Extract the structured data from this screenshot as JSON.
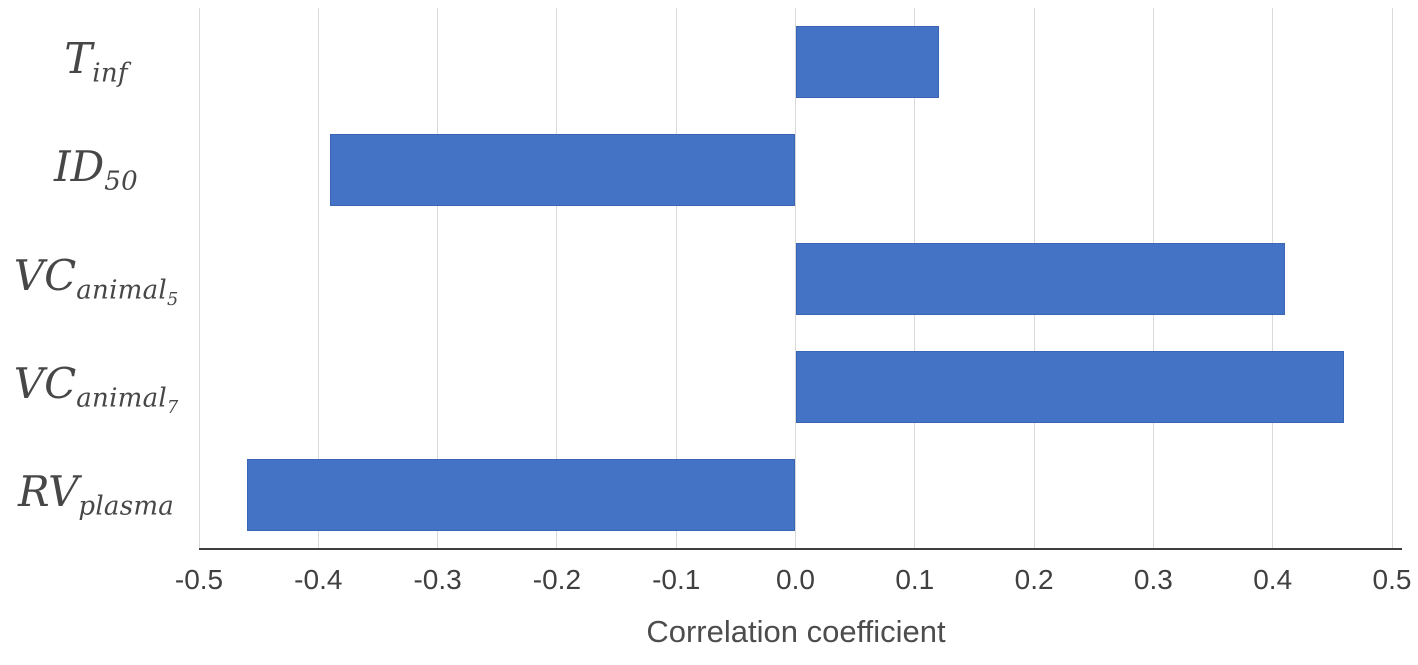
{
  "chart_data": {
    "type": "bar",
    "orientation": "horizontal",
    "title": "",
    "xlabel": "Correlation coefficient",
    "ylabel": "",
    "xlim": [
      -0.5,
      0.5
    ],
    "xtick_labels": [
      "-0.5",
      "-0.4",
      "-0.3",
      "-0.2",
      "-0.1",
      "0.0",
      "0.1",
      "0.2",
      "0.3",
      "0.4",
      "0.5"
    ],
    "xtick_values": [
      -0.5,
      -0.4,
      -0.3,
      -0.2,
      -0.1,
      0.0,
      0.1,
      0.2,
      0.3,
      0.4,
      0.5
    ],
    "grid": "vertical-gridlines-on",
    "legend": "none",
    "categories": [
      "T_inf",
      "ID_50",
      "VC_animal_5",
      "VC_animal_7",
      "RV_plasma"
    ],
    "categories_rich": [
      {
        "base": "T",
        "sub": "inf",
        "subsub": ""
      },
      {
        "base": "ID",
        "sub": "50",
        "subsub": ""
      },
      {
        "base": "VC",
        "sub": "animal",
        "subsub": "5"
      },
      {
        "base": "VC",
        "sub": "animal",
        "subsub": "7"
      },
      {
        "base": "RV",
        "sub": "plasma",
        "subsub": ""
      }
    ],
    "values": [
      0.12,
      -0.39,
      0.41,
      0.46,
      -0.46
    ]
  },
  "colors": {
    "bar_fill": "#4472c4",
    "bar_border": "#3a64b4",
    "gridline": "#d9d9d9",
    "axis_line": "#3f3f3f",
    "tick_text": "#404040",
    "axis_title_text": "#4d4d4d",
    "category_text": "#474747",
    "background": "#ffffff"
  }
}
